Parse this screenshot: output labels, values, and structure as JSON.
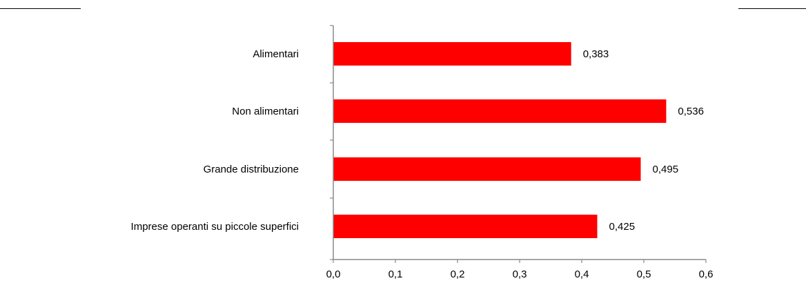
{
  "chart_data": {
    "type": "bar",
    "orientation": "horizontal",
    "categories": [
      "Alimentari",
      "Non alimentari",
      "Grande distribuzione",
      "Imprese operanti su piccole superfici"
    ],
    "values": [
      0.383,
      0.536,
      0.495,
      0.425
    ],
    "value_labels": [
      "0,383",
      "0,536",
      "0,495",
      "0,425"
    ],
    "xlim": [
      0,
      0.6
    ],
    "xticks": [
      0,
      0.1,
      0.2,
      0.3,
      0.4,
      0.5,
      0.6
    ],
    "xtick_labels": [
      "0,0",
      "0,1",
      "0,2",
      "0,3",
      "0,4",
      "0,5",
      "0,6"
    ],
    "grid": false,
    "legend": "none",
    "bar_color": "#ff0000",
    "title": "",
    "xlabel": "",
    "ylabel": ""
  }
}
